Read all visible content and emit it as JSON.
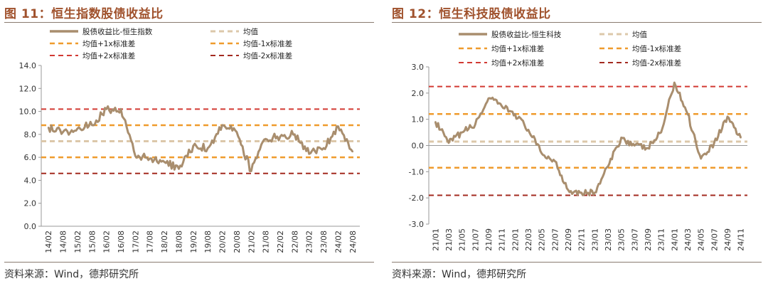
{
  "panels": [
    {
      "title": "图 11：恒生指数股债收益比",
      "source": "资料来源：Wind，德邦研究所"
    },
    {
      "title": "图 12：恒生科技股债收益比",
      "source": "资料来源：Wind，德邦研究所"
    }
  ],
  "colors": {
    "series": "#a98e6e",
    "mean": "#dcc8aa",
    "plus_minus_1sd": "#ef9b2d",
    "plus2sd": "#d23a33",
    "minus2sd": "#a32b20",
    "title": "#a0522d",
    "axis": "#999999"
  },
  "chart_data": [
    {
      "type": "line",
      "legend_position": "top",
      "xlabel": "",
      "ylabel": "",
      "ylim": [
        0,
        14
      ],
      "yticks": [
        "0.0",
        "2.0",
        "4.0",
        "6.0",
        "8.0",
        "10.0",
        "12.0",
        "14.0"
      ],
      "x": [
        "14/02",
        "14/08",
        "15/02",
        "15/08",
        "16/02",
        "16/08",
        "17/02",
        "17/08",
        "18/02",
        "18/08",
        "19/02",
        "19/08",
        "20/02",
        "20/08",
        "21/02",
        "21/08",
        "22/02",
        "22/08",
        "23/02",
        "23/08",
        "24/02",
        "24/08"
      ],
      "series": [
        {
          "name": "股债收益比-恒生指数",
          "values": [
            8.6,
            8.2,
            8.5,
            8.8,
            10.2,
            10.2,
            6.1,
            5.9,
            5.6,
            5.0,
            7.0,
            6.8,
            8.8,
            8.2,
            4.8,
            7.6,
            7.8,
            8.0,
            6.3,
            6.8,
            8.7,
            6.5
          ]
        }
      ],
      "reference_lines": [
        {
          "name": "均值",
          "value": 7.4
        },
        {
          "name": "均值+1x标准差",
          "value": 8.8
        },
        {
          "name": "均值-1x标准差",
          "value": 6.0
        },
        {
          "name": "均值+2x标准差",
          "value": 10.2
        },
        {
          "name": "均值-2x标准差",
          "value": 4.6
        }
      ]
    },
    {
      "type": "line",
      "legend_position": "top",
      "xlabel": "",
      "ylabel": "",
      "ylim": [
        -3,
        3
      ],
      "yticks": [
        "-3.0",
        "-2.0",
        "-1.0",
        "0.0",
        "1.0",
        "2.0",
        "3.0"
      ],
      "x": [
        "21/01",
        "21/03",
        "21/05",
        "21/07",
        "21/09",
        "21/11",
        "22/01",
        "22/03",
        "22/05",
        "22/07",
        "22/09",
        "22/11",
        "23/01",
        "23/03",
        "23/05",
        "23/07",
        "23/09",
        "23/11",
        "24/01",
        "24/03",
        "24/05",
        "24/07",
        "24/09",
        "24/11"
      ],
      "series": [
        {
          "name": "股债收益比-恒生科技",
          "values": [
            0.9,
            0.1,
            0.5,
            0.8,
            1.8,
            1.5,
            1.2,
            0.6,
            -0.3,
            -0.6,
            -1.7,
            -1.8,
            -1.8,
            -0.8,
            0.3,
            0.0,
            -0.1,
            0.5,
            2.4,
            1.2,
            -0.5,
            0.1,
            1.1,
            0.3
          ]
        }
      ],
      "reference_lines": [
        {
          "name": "均值",
          "value": 0.15
        },
        {
          "name": "均值+1x标准差",
          "value": 1.2
        },
        {
          "name": "均值-1x标准差",
          "value": -0.85
        },
        {
          "name": "均值+2x标准差",
          "value": 2.25
        },
        {
          "name": "均值-2x标准差",
          "value": -1.9
        }
      ]
    }
  ]
}
